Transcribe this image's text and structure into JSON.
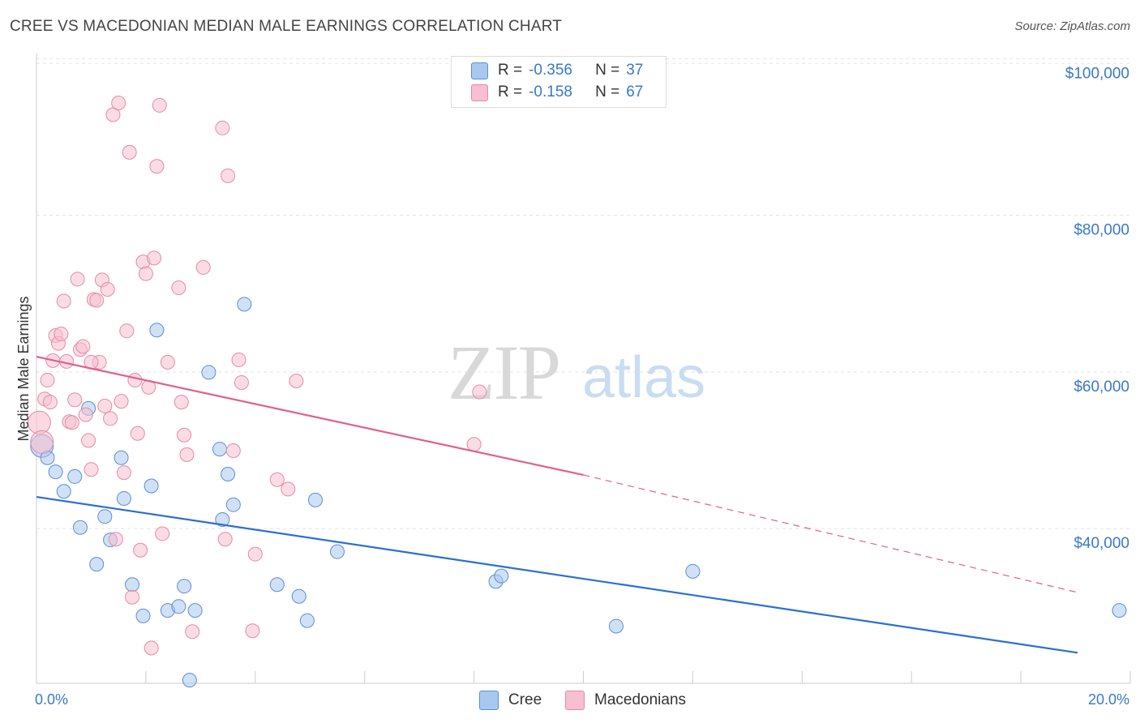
{
  "title": "CREE VS MACEDONIAN MEDIAN MALE EARNINGS CORRELATION CHART",
  "source": "Source: ZipAtlas.com",
  "watermark": {
    "zip": "ZIP",
    "atlas": "atlas"
  },
  "legend": {
    "r_label": "R =",
    "n_label": "N =",
    "rows": [
      {
        "r": "-0.356",
        "n": "37",
        "color": "#a9c8ef",
        "border": "#5b8fd6"
      },
      {
        "r": "-0.158",
        "n": "67",
        "color": "#f7bfd0",
        "border": "#e58aa8"
      }
    ]
  },
  "bottom_legend": {
    "series1": "Cree",
    "series2": "Macedonians"
  },
  "axis": {
    "x_min_label": "0.0%",
    "x_max_label": "20.0%"
  },
  "chart_data": {
    "type": "scatter",
    "title": "CREE VS MACEDONIAN MEDIAN MALE EARNINGS CORRELATION CHART",
    "xlabel": "",
    "ylabel": "Median Male Earnings",
    "xlim": [
      0,
      20
    ],
    "ylim": [
      22000,
      102000
    ],
    "y_ticks": [
      40000,
      60000,
      80000,
      100000
    ],
    "y_tick_labels": [
      "$40,000",
      "$60,000",
      "$80,000",
      "$100,000"
    ],
    "grid": true,
    "legend_position": "top-center",
    "series": [
      {
        "name": "Cree",
        "color": "#a9c8ef",
        "edge": "#5b8fd6",
        "line_color": "#2a6fd4",
        "trend": {
          "x0": 0,
          "y0": 45800,
          "x1": 20,
          "y1": 25900
        },
        "points": [
          [
            0.1,
            52300
          ],
          [
            0.2,
            50800
          ],
          [
            0.35,
            49000
          ],
          [
            0.5,
            46500
          ],
          [
            0.7,
            48400
          ],
          [
            0.8,
            41900
          ],
          [
            0.95,
            57100
          ],
          [
            1.1,
            37200
          ],
          [
            1.25,
            43300
          ],
          [
            1.35,
            40300
          ],
          [
            1.55,
            50800
          ],
          [
            1.6,
            45600
          ],
          [
            1.75,
            34600
          ],
          [
            1.95,
            30600
          ],
          [
            2.1,
            47200
          ],
          [
            2.2,
            67100
          ],
          [
            2.4,
            31300
          ],
          [
            2.6,
            31800
          ],
          [
            2.7,
            34400
          ],
          [
            2.8,
            22400
          ],
          [
            2.9,
            31300
          ],
          [
            3.15,
            61700
          ],
          [
            3.35,
            51900
          ],
          [
            3.5,
            48700
          ],
          [
            3.6,
            44800
          ],
          [
            3.4,
            42900
          ],
          [
            3.8,
            70400
          ],
          [
            4.4,
            34600
          ],
          [
            4.8,
            33100
          ],
          [
            4.95,
            30000
          ],
          [
            5.1,
            45400
          ],
          [
            5.5,
            38800
          ],
          [
            8.4,
            35000
          ],
          [
            8.5,
            35700
          ],
          [
            10.6,
            29300
          ],
          [
            12.0,
            36300
          ],
          [
            19.8,
            31300
          ]
        ]
      },
      {
        "name": "Macedonians",
        "color": "#f7bfd0",
        "edge": "#e58aa8",
        "line_color": "#e0608a",
        "trend": {
          "x0": 0,
          "y0": 63700,
          "x1": 10,
          "y1": 48600,
          "x1_dash": 20,
          "y1_dash": 33600
        },
        "points": [
          [
            0.05,
            55300
          ],
          [
            0.1,
            52800
          ],
          [
            0.15,
            58300
          ],
          [
            0.2,
            60700
          ],
          [
            0.3,
            63200
          ],
          [
            0.35,
            66400
          ],
          [
            0.4,
            65400
          ],
          [
            0.45,
            66600
          ],
          [
            0.5,
            70800
          ],
          [
            0.55,
            63100
          ],
          [
            0.6,
            55400
          ],
          [
            0.65,
            55300
          ],
          [
            0.7,
            58200
          ],
          [
            0.75,
            73600
          ],
          [
            0.8,
            64600
          ],
          [
            0.85,
            65000
          ],
          [
            0.9,
            56300
          ],
          [
            0.95,
            53000
          ],
          [
            1.0,
            49300
          ],
          [
            1.05,
            71000
          ],
          [
            1.1,
            70900
          ],
          [
            1.15,
            63000
          ],
          [
            1.2,
            73500
          ],
          [
            1.25,
            57400
          ],
          [
            1.3,
            72300
          ],
          [
            1.35,
            55800
          ],
          [
            1.4,
            94600
          ],
          [
            1.45,
            40400
          ],
          [
            1.5,
            96100
          ],
          [
            1.55,
            58000
          ],
          [
            1.6,
            48900
          ],
          [
            1.65,
            67000
          ],
          [
            1.7,
            89800
          ],
          [
            1.75,
            33000
          ],
          [
            1.8,
            60700
          ],
          [
            1.85,
            53900
          ],
          [
            1.9,
            39000
          ],
          [
            1.95,
            75800
          ],
          [
            2.0,
            74300
          ],
          [
            2.05,
            59800
          ],
          [
            2.1,
            26500
          ],
          [
            2.15,
            76300
          ],
          [
            2.2,
            88000
          ],
          [
            2.25,
            95800
          ],
          [
            2.3,
            41100
          ],
          [
            2.6,
            72500
          ],
          [
            2.65,
            57900
          ],
          [
            2.7,
            53700
          ],
          [
            2.75,
            51200
          ],
          [
            2.85,
            28600
          ],
          [
            3.05,
            75100
          ],
          [
            3.4,
            92900
          ],
          [
            3.45,
            40400
          ],
          [
            3.5,
            86800
          ],
          [
            3.6,
            51700
          ],
          [
            3.7,
            63300
          ],
          [
            3.75,
            60400
          ],
          [
            3.95,
            28700
          ],
          [
            4.0,
            38500
          ],
          [
            4.4,
            48000
          ],
          [
            4.6,
            46800
          ],
          [
            4.75,
            60600
          ],
          [
            8.0,
            52500
          ],
          [
            8.1,
            59200
          ],
          [
            0.25,
            57900
          ],
          [
            2.4,
            63000
          ],
          [
            1.0,
            63000
          ]
        ]
      }
    ]
  }
}
